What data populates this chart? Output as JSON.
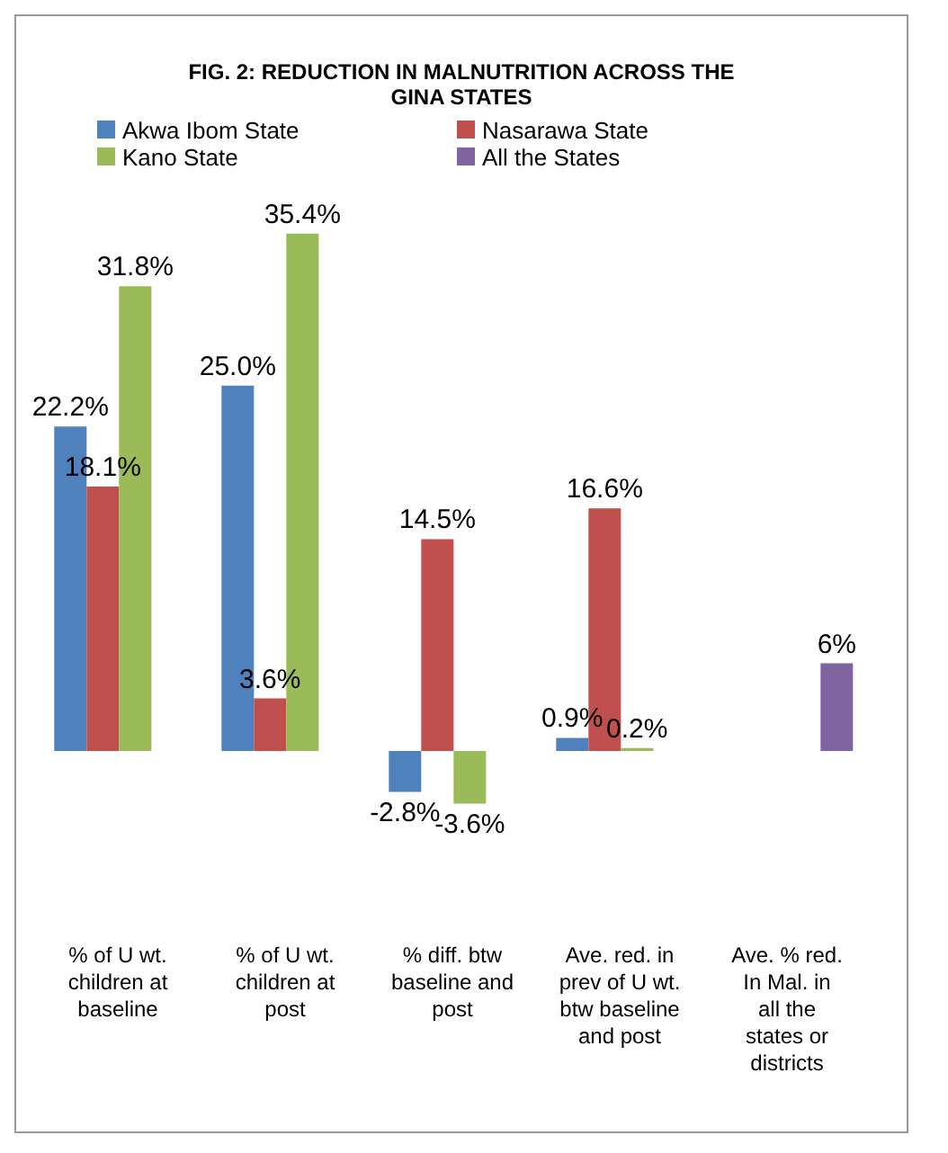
{
  "chart_data": {
    "type": "bar",
    "title": "FIG. 2: REDUCTION IN MALNUTRITION ACROSS THE GINA STATES",
    "categories": [
      "% of U wt. children at baseline",
      "% of U wt. children at post",
      "% diff. btw baseline and post",
      "Ave. red. in prev of U wt. btw baseline and post",
      "Ave. % red. In Mal. in all the states or districts"
    ],
    "series": [
      {
        "name": "Akwa Ibom State",
        "color": "#4f81bd",
        "values": [
          22.2,
          25.0,
          -2.8,
          0.9,
          null
        ],
        "value_labels": [
          "22.2%",
          "25.0%",
          "-2.8%",
          "0.9%",
          null
        ]
      },
      {
        "name": "Nasarawa State",
        "color": "#c0504d",
        "values": [
          18.1,
          3.6,
          14.5,
          16.6,
          null
        ],
        "value_labels": [
          "18.1%",
          "3.6%",
          "14.5%",
          "16.6%",
          null
        ]
      },
      {
        "name": "Kano State",
        "color": "#9bbb59",
        "values": [
          31.8,
          35.4,
          -3.6,
          0.2,
          null
        ],
        "value_labels": [
          "31.8%",
          "35.4%",
          "-3.6%",
          "0.2%",
          null
        ]
      },
      {
        "name": "All the States",
        "color": "#8064a2",
        "values": [
          null,
          null,
          null,
          null,
          6
        ],
        "value_labels": [
          null,
          null,
          null,
          null,
          "6%"
        ]
      }
    ],
    "legend": "top",
    "grid": false
  }
}
